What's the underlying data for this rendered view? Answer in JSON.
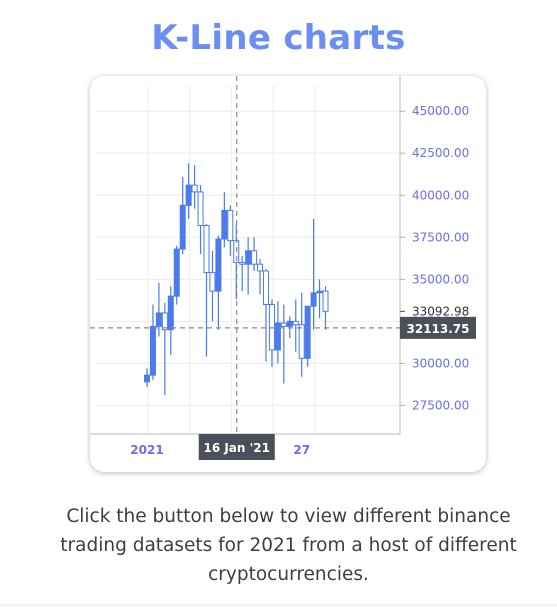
{
  "page": {
    "title": "K-Line charts",
    "description": "Click the button below to view different binance trading datasets for 2021 from a host of different cryptocurrencies."
  },
  "chart_data": {
    "type": "candlestick",
    "y_ticks": [
      "45000.00",
      "42500.00",
      "40000.00",
      "37500.00",
      "35000.00",
      "32500.00",
      "30000.00",
      "27500.00"
    ],
    "y_tick_values": [
      45000,
      42500,
      40000,
      37500,
      35000,
      32500,
      30000,
      27500
    ],
    "ylim": [
      25800,
      46500
    ],
    "x_ticks": [
      {
        "label": "2021",
        "index": 0
      },
      {
        "label": "27",
        "index": 26
      }
    ],
    "crosshair": {
      "x_label": "16 Jan '21",
      "x_index": 15,
      "y_value": 32113.75,
      "y_label": "32113.75"
    },
    "last_price": {
      "value": 33092.98,
      "label": "33092.98"
    },
    "candles": [
      {
        "o": 28900,
        "h": 29700,
        "l": 28600,
        "c": 29300
      },
      {
        "o": 29300,
        "h": 33500,
        "l": 29000,
        "c": 32200
      },
      {
        "o": 32200,
        "h": 34800,
        "l": 31600,
        "c": 33000
      },
      {
        "o": 33000,
        "h": 33600,
        "l": 28100,
        "c": 32000
      },
      {
        "o": 32000,
        "h": 34600,
        "l": 30500,
        "c": 34000
      },
      {
        "o": 34000,
        "h": 37000,
        "l": 33500,
        "c": 36800
      },
      {
        "o": 36800,
        "h": 41100,
        "l": 36500,
        "c": 39400
      },
      {
        "o": 39400,
        "h": 41900,
        "l": 38600,
        "c": 40600
      },
      {
        "o": 40600,
        "h": 41800,
        "l": 39200,
        "c": 40200
      },
      {
        "o": 40200,
        "h": 40600,
        "l": 36500,
        "c": 38200
      },
      {
        "o": 38200,
        "h": 38300,
        "l": 30400,
        "c": 35400
      },
      {
        "o": 35400,
        "h": 36700,
        "l": 32500,
        "c": 34300
      },
      {
        "o": 34300,
        "h": 37600,
        "l": 32000,
        "c": 37400
      },
      {
        "o": 37400,
        "h": 40200,
        "l": 36900,
        "c": 39100
      },
      {
        "o": 39100,
        "h": 39400,
        "l": 36400,
        "c": 37300
      },
      {
        "o": 37300,
        "h": 38300,
        "l": 33800,
        "c": 36000
      },
      {
        "o": 36000,
        "h": 36400,
        "l": 34300,
        "c": 35900
      },
      {
        "o": 35900,
        "h": 37500,
        "l": 34100,
        "c": 36700
      },
      {
        "o": 36700,
        "h": 37500,
        "l": 35500,
        "c": 35900
      },
      {
        "o": 35900,
        "h": 36200,
        "l": 34100,
        "c": 35500
      },
      {
        "o": 35500,
        "h": 35600,
        "l": 30100,
        "c": 33500
      },
      {
        "o": 33500,
        "h": 33800,
        "l": 29800,
        "c": 30800
      },
      {
        "o": 30800,
        "h": 33700,
        "l": 30000,
        "c": 32400
      },
      {
        "o": 32400,
        "h": 33500,
        "l": 28800,
        "c": 32200
      },
      {
        "o": 32200,
        "h": 32800,
        "l": 31500,
        "c": 32500
      },
      {
        "o": 32500,
        "h": 33800,
        "l": 30700,
        "c": 32300
      },
      {
        "o": 32300,
        "h": 34200,
        "l": 29200,
        "c": 30300
      },
      {
        "o": 30300,
        "h": 33400,
        "l": 29800,
        "c": 33400
      },
      {
        "o": 33400,
        "h": 38600,
        "l": 32000,
        "c": 34200
      },
      {
        "o": 34200,
        "h": 35000,
        "l": 32700,
        "c": 34300
      },
      {
        "o": 34300,
        "h": 34600,
        "l": 32000,
        "c": 33100
      }
    ],
    "colors": {
      "up": "#4b7bec",
      "down": "#ffffff",
      "down_stroke": "#4b7bec",
      "axis_text": "#6b6ef0",
      "grid": "#ececec",
      "crosshair": "#8a8a8a",
      "label_bg": "#4a4f59",
      "label_text": "#ffffff",
      "title": "#6b8ef0"
    }
  }
}
